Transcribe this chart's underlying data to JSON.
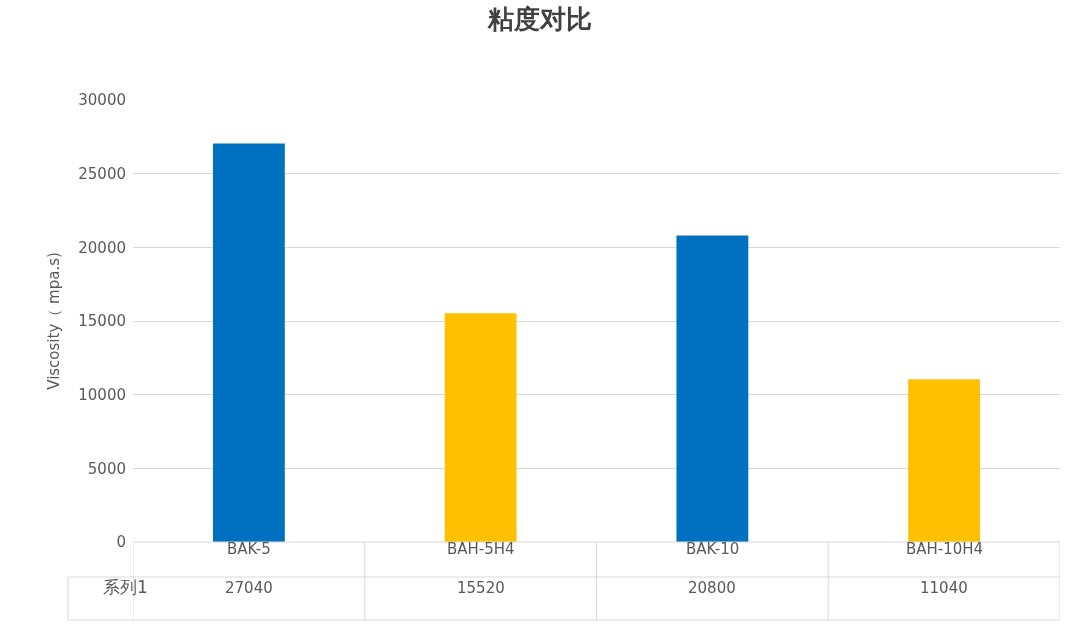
{
  "chart_data": {
    "type": "bar",
    "title": "粘度对比",
    "ylabel": "Viscosity（ mpa.s)",
    "categories": [
      "BAK-5",
      "BAH-5H4",
      "BAK-10",
      "BAH-10H4"
    ],
    "series": [
      {
        "name": "系列1",
        "values": [
          27040,
          15520,
          20800,
          11040
        ],
        "colors": [
          "#0070c0",
          "#ffc000",
          "#0070c0",
          "#ffc000"
        ]
      }
    ],
    "ylim": [
      0,
      30000
    ],
    "yticks": [
      0,
      5000,
      10000,
      15000,
      20000,
      25000,
      30000
    ],
    "grid": "y",
    "data_labels": true
  }
}
